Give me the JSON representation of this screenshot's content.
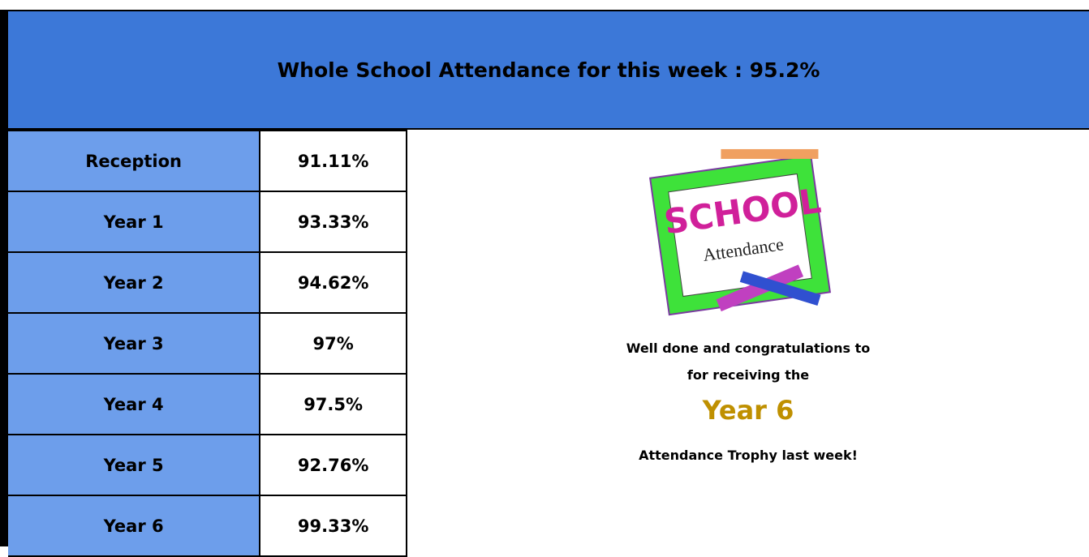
{
  "header": {
    "title": "Whole School Attendance for this week :  95.2%"
  },
  "table": {
    "rows": [
      [
        "Reception",
        "91.11%"
      ],
      [
        "Year 1",
        "93.33%"
      ],
      [
        "Year 2",
        "94.62%"
      ],
      [
        "Year 3",
        "97%"
      ],
      [
        "Year 4",
        "97.5%"
      ],
      [
        "Year 5",
        "92.76%"
      ],
      [
        "Year 6",
        "99.33%"
      ]
    ]
  },
  "panel": {
    "image": {
      "title": "SCHOOL",
      "subtitle": "Attendance"
    },
    "line1": "Well done and congratulations to",
    "line2": "for receiving the",
    "winner": "Year 6",
    "line3": "Attendance Trophy last  week!"
  }
}
